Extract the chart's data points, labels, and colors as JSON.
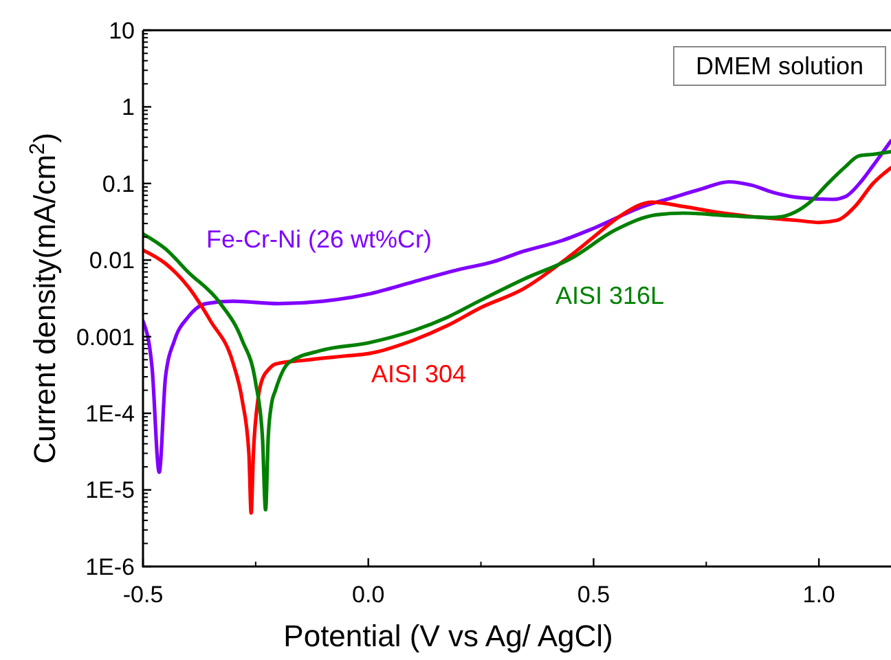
{
  "chart_data": {
    "type": "line",
    "xlabel": "Potential (V vs Ag/ AgCl)",
    "ylabel": "Current density(mA/cm$^{2}$)",
    "log": "y",
    "xlim": [
      -0.5,
      1.16
    ],
    "ylim": [
      1e-06,
      10
    ],
    "xticks": [
      {
        "value": -0.5,
        "label": "-0.5"
      },
      {
        "value": 0,
        "label": "0.0"
      },
      {
        "value": 0.5,
        "label": "0.5"
      },
      {
        "value": 1,
        "label": "1.0"
      }
    ],
    "yticks": [
      {
        "value": 1e-06,
        "label": "1E-6"
      },
      {
        "value": 1e-05,
        "label": "1E-5"
      },
      {
        "value": 0.0001,
        "label": "1E-4"
      },
      {
        "value": 0.001,
        "label": "0.001"
      },
      {
        "value": 0.01,
        "label": "0.01"
      },
      {
        "value": 0.1,
        "label": "0.1"
      },
      {
        "value": 1,
        "label": "1"
      },
      {
        "value": 10,
        "label": "10"
      }
    ],
    "grid": false,
    "legend": false,
    "line_style": "solid",
    "annotations": [
      "DMEM solution"
    ],
    "series": [
      {
        "name": "Fe-Cr-Ni (26 wt%Cr)",
        "color": "#8000ff",
        "x": [
          -0.5,
          -0.48,
          -0.464,
          -0.45,
          -0.43,
          -0.4,
          -0.36,
          -0.3,
          -0.2,
          -0.1,
          0,
          0.1,
          0.2,
          0.277,
          0.344,
          0.43,
          0.5,
          0.61,
          0.67,
          0.74,
          0.8,
          0.85,
          0.9,
          0.96,
          1.03,
          1.06,
          1.09,
          1.12,
          1.16
        ],
        "values": [
          0.0016,
          0.0004,
          1.7e-05,
          0.0003,
          0.0009,
          0.0018,
          0.0027,
          0.0029,
          0.0027,
          0.0029,
          0.0036,
          0.0052,
          0.0075,
          0.0095,
          0.013,
          0.018,
          0.026,
          0.05,
          0.064,
          0.085,
          0.105,
          0.095,
          0.076,
          0.065,
          0.062,
          0.068,
          0.1,
          0.17,
          0.36
        ]
      },
      {
        "name": "AISI 304",
        "color": "#ff0000",
        "x": [
          -0.5,
          -0.45,
          -0.4,
          -0.35,
          -0.3,
          -0.28,
          -0.265,
          -0.26,
          -0.255,
          -0.245,
          -0.237,
          -0.22,
          -0.206,
          -0.145,
          -0.05,
          0,
          0.1,
          0.176,
          0.25,
          0.344,
          0.445,
          0.5,
          0.56,
          0.63,
          0.7,
          0.775,
          0.85,
          0.95,
          1.0,
          1.04,
          1.08,
          1.12,
          1.16
        ],
        "values": [
          0.0135,
          0.009,
          0.0045,
          0.0016,
          0.00045,
          0.00015,
          3e-05,
          5e-06,
          3e-05,
          0.00015,
          0.00026,
          0.00038,
          0.00044,
          0.00049,
          0.00056,
          0.0006,
          0.0009,
          0.0014,
          0.0024,
          0.0042,
          0.011,
          0.02,
          0.038,
          0.057,
          0.05,
          0.042,
          0.037,
          0.033,
          0.031,
          0.033,
          0.05,
          0.1,
          0.16
        ]
      },
      {
        "name": "AISI 316L",
        "color": "#008000",
        "x": [
          -0.5,
          -0.45,
          -0.4,
          -0.33,
          -0.28,
          -0.25,
          -0.235,
          -0.228,
          -0.222,
          -0.215,
          -0.206,
          -0.176,
          -0.105,
          0,
          0.1,
          0.176,
          0.25,
          0.344,
          0.45,
          0.55,
          0.64,
          0.7,
          0.8,
          0.9,
          0.977,
          1.02,
          1.056,
          1.09,
          1.12,
          1.16
        ],
        "values": [
          0.022,
          0.014,
          0.007,
          0.0028,
          0.0009,
          0.00025,
          5e-05,
          5.5e-06,
          5e-05,
          0.00013,
          0.0002,
          0.00046,
          0.00066,
          0.00083,
          0.0012,
          0.0018,
          0.003,
          0.0056,
          0.0105,
          0.025,
          0.039,
          0.041,
          0.038,
          0.036,
          0.055,
          0.1,
          0.16,
          0.23,
          0.24,
          0.26
        ]
      }
    ]
  }
}
